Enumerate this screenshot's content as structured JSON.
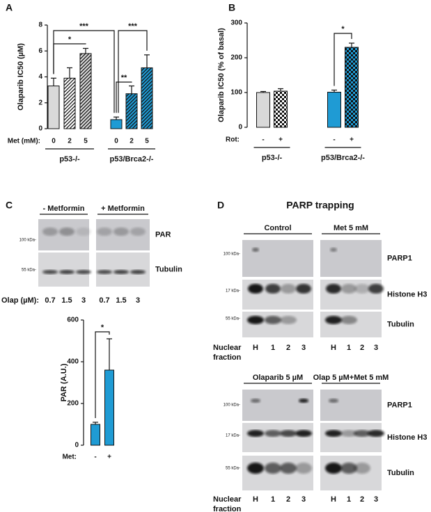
{
  "panel_labels": [
    "A",
    "B",
    "C",
    "D"
  ],
  "chart_data": [
    {
      "type": "bar",
      "y_label": "Olaparib IC50 (µM)",
      "x_label": "Met (mM):",
      "categories": [
        "0",
        "2",
        "5",
        "0",
        "2",
        "5"
      ],
      "values": [
        3.3,
        3.9,
        5.8,
        0.7,
        2.7,
        4.7
      ],
      "errors": [
        0.6,
        0.8,
        0.4,
        0.2,
        0.6,
        1.0
      ],
      "colors": [
        "#d9d9d9",
        "#ffffff",
        "#d9d9d9",
        "#1f9bd4",
        "#1f9bd4",
        "#1f9bd4"
      ],
      "patterns": [
        "none",
        "hatch",
        "hatch",
        "none",
        "hatch",
        "hatch"
      ],
      "ylim": [
        0,
        8
      ],
      "yticks": [
        0,
        2,
        4,
        6,
        8
      ],
      "groups": [
        {
          "name": "p53-/-",
          "span": [
            0,
            2
          ]
        },
        {
          "name": "p53/Brca2-/-",
          "span": [
            3,
            5
          ]
        }
      ],
      "brackets": [
        {
          "span": [
            0,
            2
          ],
          "text": "*"
        },
        {
          "span": [
            0,
            3
          ],
          "text": "***"
        },
        {
          "span": [
            3,
            4
          ],
          "text": "**"
        },
        {
          "span": [
            3,
            5
          ],
          "text": "***"
        }
      ]
    },
    {
      "type": "bar",
      "y_label": "Olaparib IC50 (% of basal)",
      "x_label": "Rot:",
      "categories": [
        "-",
        "+",
        "-",
        "+"
      ],
      "values": [
        100,
        104,
        101,
        230
      ],
      "errors": [
        3,
        7,
        6,
        12
      ],
      "colors": [
        "#d9d9d9",
        "#ffffff",
        "#1f9bd4",
        "#1f9bd4"
      ],
      "patterns": [
        "none",
        "checker",
        "none",
        "checker"
      ],
      "ylim": [
        0,
        300
      ],
      "yticks": [
        0,
        100,
        200,
        300
      ],
      "groups": [
        {
          "name": "p53-/-",
          "span": [
            0,
            1
          ]
        },
        {
          "name": "p53/Brca2-/-",
          "span": [
            2,
            3
          ]
        }
      ],
      "brackets": [
        {
          "span": [
            2,
            3
          ],
          "text": "*"
        }
      ]
    },
    {
      "type": "bar",
      "y_label": "PAR (A.U.)",
      "x_label": "Met:",
      "categories": [
        "-",
        "+"
      ],
      "values": [
        100,
        360
      ],
      "errors": [
        10,
        150
      ],
      "colors": [
        "#1f9bd4",
        "#1f9bd4"
      ],
      "patterns": [
        "none",
        "none"
      ],
      "ylim": [
        0,
        600
      ],
      "yticks": [
        0,
        200,
        400,
        600
      ],
      "groups": [],
      "brackets": [
        {
          "span": [
            0,
            1
          ],
          "text": "*"
        }
      ]
    }
  ],
  "blots": {
    "C": {
      "headers": [
        "- Metformin",
        "+ Metformin"
      ],
      "rows": [
        "PAR",
        "Tubulin"
      ],
      "markers": [
        "100 kDa-",
        "55 kDa-"
      ],
      "lane_label": [
        "Olap (µM):"
      ],
      "lanes": [
        "0.7",
        "1.5",
        "3",
        "0.7",
        "1.5",
        "3"
      ]
    },
    "D": {
      "title": "PARP trapping",
      "panels": [
        {
          "headers": [
            "Control",
            "Met 5 mM"
          ],
          "rows": [
            "PARP1",
            "Histone H3",
            "Tubulin"
          ],
          "markers": [
            "100 kDa-",
            "17 kDa-",
            "55 kDa-"
          ],
          "lane_label": [
            "Nuclear",
            "fraction"
          ],
          "lanes": [
            "H",
            "1",
            "2",
            "3",
            "H",
            "1",
            "2",
            "3"
          ]
        },
        {
          "headers": [
            "Olaparib 5 µM",
            "Olap 5 µM+Met 5 mM"
          ],
          "rows": [
            "PARP1",
            "Histone H3",
            "Tubulin"
          ],
          "markers": [
            "100 kDa-",
            "17 kDa-",
            "55 kDa-"
          ],
          "lane_label": [
            "Nuclear",
            "fraction"
          ],
          "lanes": [
            "H",
            "1",
            "2",
            "3",
            "H",
            "1",
            "2",
            "3"
          ]
        }
      ]
    }
  }
}
